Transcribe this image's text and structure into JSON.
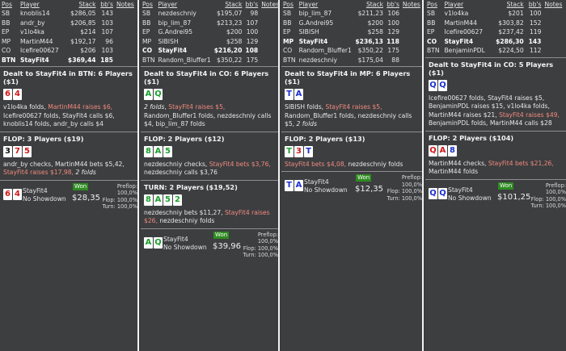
{
  "headers": {
    "pos": "Pos",
    "player": "Player",
    "stack": "Stack",
    "bbs": "bb's",
    "notes": "Notes"
  },
  "labels": {
    "won": "Won",
    "preflop": "Preflop:",
    "flop": "Flop:",
    "turn": "Turn:"
  },
  "colors": {
    "panel_bg": "#3d3e40",
    "highlight": "#f08a7e",
    "won_bg": "#2e8b21",
    "spade": "#1b9e2e",
    "heart": "#d01818",
    "diamond": "#1a2fd0",
    "club": "#111111"
  },
  "hands": [
    {
      "players": [
        {
          "pos": "SB",
          "name": "knoblis14",
          "stack": "$286,05",
          "bbs": "143",
          "hero": false
        },
        {
          "pos": "BB",
          "name": "andr_by",
          "stack": "$206,85",
          "bbs": "103",
          "hero": false
        },
        {
          "pos": "EP",
          "name": "v1lo4ka",
          "stack": "$214",
          "bbs": "107",
          "hero": false
        },
        {
          "pos": "MP",
          "name": "MartinM44",
          "stack": "$192,17",
          "bbs": "96",
          "hero": false
        },
        {
          "pos": "CO",
          "name": "Icefire00627",
          "stack": "$206",
          "bbs": "103",
          "hero": false
        },
        {
          "pos": "BTN",
          "name": "StayFit4",
          "stack": "$369,44",
          "bbs": "185",
          "hero": true
        }
      ],
      "streets": [
        {
          "title": "Dealt to StayFit4 in BTN: 6 Players ($1)",
          "cards": [
            {
              "rank": "6",
              "suit": "h"
            },
            {
              "rank": "4",
              "suit": "h"
            }
          ],
          "actions": [
            {
              "t": "v1lo4ka folds, ",
              "c": ""
            },
            {
              "t": "MartinM44 raises $6,",
              "c": "hl"
            },
            {
              "t": " Icefire00627 folds, StayFit4 calls $6, knoblis14 folds, andr_by calls $4",
              "c": ""
            }
          ]
        },
        {
          "title": "FLOP: 3 Players ($19)",
          "cards": [
            {
              "rank": "3",
              "suit": "c"
            },
            {
              "rank": "7",
              "suit": "h"
            },
            {
              "rank": "5",
              "suit": "h"
            }
          ],
          "actions": [
            {
              "t": "andr_by checks, MartinM44 bets $5,42, ",
              "c": ""
            },
            {
              "t": "StayFit4 raises $17,98,",
              "c": "hl"
            },
            {
              "t": " ",
              "c": ""
            },
            {
              "t": "2 folds",
              "c": "it"
            }
          ]
        }
      ],
      "summary": {
        "cards": [
          {
            "rank": "6",
            "suit": "h"
          },
          {
            "rank": "4",
            "suit": "h"
          }
        ],
        "name": "StayFit4",
        "status": "No Showdown",
        "amount": "$28,35",
        "preflop": "100,0%",
        "flop": "100,0%",
        "turn": "100,0%"
      }
    },
    {
      "players": [
        {
          "pos": "SB",
          "name": "nezdeschniy",
          "stack": "$195,07",
          "bbs": "98",
          "hero": false
        },
        {
          "pos": "BB",
          "name": "bip_lim_87",
          "stack": "$213,23",
          "bbs": "107",
          "hero": false
        },
        {
          "pos": "EP",
          "name": "G.Andrei95",
          "stack": "$200",
          "bbs": "100",
          "hero": false
        },
        {
          "pos": "MP",
          "name": "SIBISH",
          "stack": "$258",
          "bbs": "129",
          "hero": false
        },
        {
          "pos": "CO",
          "name": "StayFit4",
          "stack": "$216,20",
          "bbs": "108",
          "hero": true
        },
        {
          "pos": "BTN",
          "name": "Random_Bluffer1",
          "stack": "$350,22",
          "bbs": "175",
          "hero": false
        }
      ],
      "streets": [
        {
          "title": "Dealt to StayFit4 in CO: 6 Players ($1)",
          "cards": [
            {
              "rank": "A",
              "suit": "s"
            },
            {
              "rank": "Q",
              "suit": "s"
            }
          ],
          "actions": [
            {
              "t": "2 folds",
              "c": "it"
            },
            {
              "t": ", ",
              "c": ""
            },
            {
              "t": "StayFit4 raises $5,",
              "c": "hl"
            },
            {
              "t": " Random_Bluffer1 folds, nezdeschniy calls $4, bip_lim_87 folds",
              "c": ""
            }
          ]
        },
        {
          "title": "FLOP: 2 Players ($12)",
          "cards": [
            {
              "rank": "8",
              "suit": "s"
            },
            {
              "rank": "A",
              "suit": "s"
            },
            {
              "rank": "5",
              "suit": "s"
            }
          ],
          "actions": [
            {
              "t": "nezdeschniy checks, ",
              "c": ""
            },
            {
              "t": "StayFit4 bets $3,76,",
              "c": "hl"
            },
            {
              "t": " nezdeschniy calls $3,76",
              "c": ""
            }
          ]
        },
        {
          "title": "TURN: 2 Players ($19,52)",
          "cards": [
            {
              "rank": "8",
              "suit": "s"
            },
            {
              "rank": "A",
              "suit": "s"
            },
            {
              "rank": "5",
              "suit": "s"
            },
            {
              "rank": "2",
              "suit": "s"
            }
          ],
          "actions": [
            {
              "t": "nezdeschniy bets $11,27, ",
              "c": ""
            },
            {
              "t": "StayFit4 raises $26,",
              "c": "hl"
            },
            {
              "t": " nezdeschniy folds",
              "c": ""
            }
          ]
        }
      ],
      "summary": {
        "cards": [
          {
            "rank": "A",
            "suit": "s"
          },
          {
            "rank": "Q",
            "suit": "s"
          }
        ],
        "name": "StayFit4",
        "status": "No Showdown",
        "amount": "$39,96",
        "preflop": "100,0%",
        "flop": "100,0%",
        "turn": "100,0%"
      }
    },
    {
      "players": [
        {
          "pos": "SB",
          "name": "bip_lim_87",
          "stack": "$211,23",
          "bbs": "106",
          "hero": false
        },
        {
          "pos": "BB",
          "name": "G.Andrei95",
          "stack": "$200",
          "bbs": "100",
          "hero": false
        },
        {
          "pos": "EP",
          "name": "SIBISH",
          "stack": "$258",
          "bbs": "129",
          "hero": false
        },
        {
          "pos": "MP",
          "name": "StayFit4",
          "stack": "$236,13",
          "bbs": "118",
          "hero": true
        },
        {
          "pos": "CO",
          "name": "Random_Bluffer1",
          "stack": "$350,22",
          "bbs": "175",
          "hero": false
        },
        {
          "pos": "BTN",
          "name": "nezdeschniy",
          "stack": "$175,04",
          "bbs": "88",
          "hero": false
        }
      ],
      "streets": [
        {
          "title": "Dealt to StayFit4 in MP: 6 Players ($1)",
          "cards": [
            {
              "rank": "T",
              "suit": "d"
            },
            {
              "rank": "A",
              "suit": "d"
            }
          ],
          "actions": [
            {
              "t": "SIBISH folds, ",
              "c": ""
            },
            {
              "t": "StayFit4 raises $5,",
              "c": "hl"
            },
            {
              "t": " Random_Bluffer1 folds, nezdeschniy calls $5, ",
              "c": ""
            },
            {
              "t": "2 folds",
              "c": "it"
            }
          ]
        },
        {
          "title": "FLOP: 2 Players ($13)",
          "cards": [
            {
              "rank": "T",
              "suit": "s"
            },
            {
              "rank": "3",
              "suit": "h"
            },
            {
              "rank": "T",
              "suit": "d"
            }
          ],
          "actions": [
            {
              "t": "StayFit4 bets $4,08,",
              "c": "hl"
            },
            {
              "t": " nezdeschniy folds",
              "c": ""
            }
          ]
        }
      ],
      "summary": {
        "cards": [
          {
            "rank": "T",
            "suit": "d"
          },
          {
            "rank": "A",
            "suit": "d"
          }
        ],
        "name": "StayFit4",
        "status": "No Showdown",
        "amount": "$12,35",
        "preflop": "100,0%",
        "flop": "100,0%",
        "turn": "100,0%"
      }
    },
    {
      "players": [
        {
          "pos": "SB",
          "name": "v1lo4ka",
          "stack": "$201",
          "bbs": "100",
          "hero": false
        },
        {
          "pos": "BB",
          "name": "MartinM44",
          "stack": "$303,82",
          "bbs": "152",
          "hero": false
        },
        {
          "pos": "EP",
          "name": "Icefire00627",
          "stack": "$237,42",
          "bbs": "119",
          "hero": false
        },
        {
          "pos": "CO",
          "name": "StayFit4",
          "stack": "$286,30",
          "bbs": "143",
          "hero": true
        },
        {
          "pos": "BTN",
          "name": "BenjaminPDL",
          "stack": "$224,50",
          "bbs": "112",
          "hero": false
        }
      ],
      "streets": [
        {
          "title": "Dealt to StayFit4 in CO: 5 Players ($1)",
          "cards": [
            {
              "rank": "Q",
              "suit": "d"
            },
            {
              "rank": "Q",
              "suit": "d"
            }
          ],
          "actions": [
            {
              "t": "Icefire00627 folds, StayFit4 raises $5, BenjaminPDL raises $15, v1lo4ka folds, MartinM44 raises $21, ",
              "c": ""
            },
            {
              "t": "StayFit4 raises $49,",
              "c": "hl"
            },
            {
              "t": " BenjaminPDL folds, MartinM44 calls $28",
              "c": ""
            }
          ]
        },
        {
          "title": "FLOP: 2 Players ($104)",
          "cards": [
            {
              "rank": "Q",
              "suit": "h"
            },
            {
              "rank": "A",
              "suit": "h"
            },
            {
              "rank": "8",
              "suit": "d"
            }
          ],
          "actions": [
            {
              "t": "MartinM44 checks, ",
              "c": ""
            },
            {
              "t": "StayFit4 bets $21,26,",
              "c": "hl"
            },
            {
              "t": " MartinM44 folds",
              "c": ""
            }
          ]
        }
      ],
      "summary": {
        "cards": [
          {
            "rank": "Q",
            "suit": "d"
          },
          {
            "rank": "Q",
            "suit": "d"
          }
        ],
        "name": "StayFit4",
        "status": "No Showdown",
        "amount": "$101,25",
        "preflop": "100,0%",
        "flop": "100,0%",
        "turn": "100,0%"
      }
    }
  ]
}
